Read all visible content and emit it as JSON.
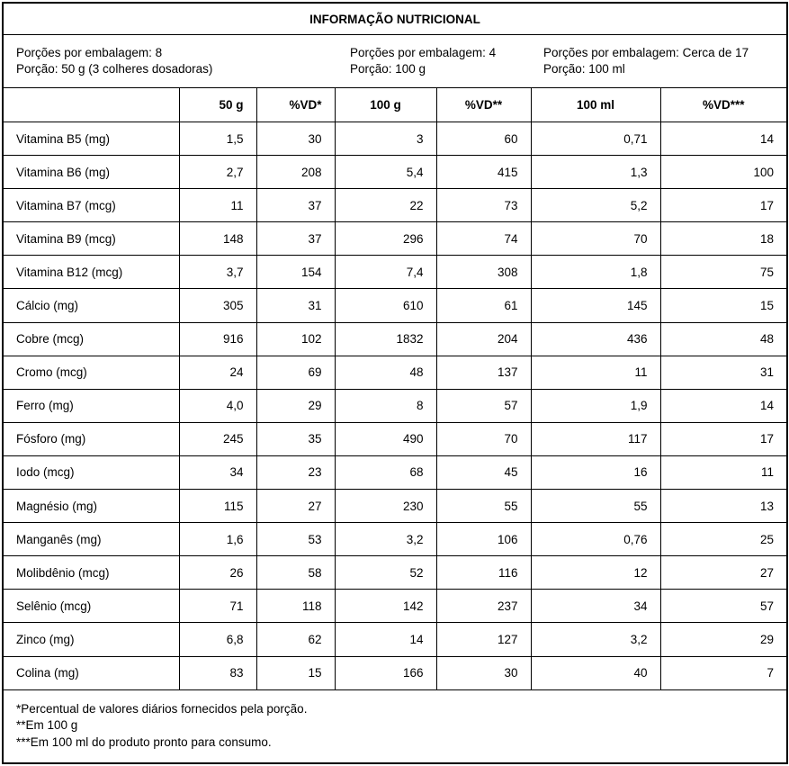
{
  "title": "INFORMAÇÃO NUTRICIONAL",
  "servings": [
    {
      "per_package": "Porções por embalagem: 8",
      "portion": "Porção: 50 g (3 colheres dosadoras)"
    },
    {
      "per_package": "Porções por embalagem: 4",
      "portion": "Porção: 100 g"
    },
    {
      "per_package": "Porções por embalagem: Cerca de 17",
      "portion": "Porção: 100 ml"
    }
  ],
  "columns": [
    "",
    "50 g",
    "%VD*",
    "100 g",
    "%VD**",
    "100 ml",
    "%VD***"
  ],
  "rows": [
    [
      "Vitamina B5 (mg)",
      "1,5",
      "30",
      "3",
      "60",
      "0,71",
      "14"
    ],
    [
      "Vitamina B6 (mg)",
      "2,7",
      "208",
      "5,4",
      "415",
      "1,3",
      "100"
    ],
    [
      "Vitamina B7 (mcg)",
      "11",
      "37",
      "22",
      "73",
      "5,2",
      "17"
    ],
    [
      "Vitamina B9 (mcg)",
      "148",
      "37",
      "296",
      "74",
      "70",
      "18"
    ],
    [
      "Vitamina B12 (mcg)",
      "3,7",
      "154",
      "7,4",
      "308",
      "1,8",
      "75"
    ],
    [
      "Cálcio (mg)",
      "305",
      "31",
      "610",
      "61",
      "145",
      "15"
    ],
    [
      "Cobre (mcg)",
      "916",
      "102",
      "1832",
      "204",
      "436",
      "48"
    ],
    [
      "Cromo (mcg)",
      "24",
      "69",
      "48",
      "137",
      "11",
      "31"
    ],
    [
      "Ferro (mg)",
      "4,0",
      "29",
      "8",
      "57",
      "1,9",
      "14"
    ],
    [
      "Fósforo (mg)",
      "245",
      "35",
      "490",
      "70",
      "117",
      "17"
    ],
    [
      "Iodo (mcg)",
      "34",
      "23",
      "68",
      "45",
      "16",
      "11"
    ],
    [
      "Magnésio (mg)",
      "115",
      "27",
      "230",
      "55",
      "55",
      "13"
    ],
    [
      "Manganês (mg)",
      "1,6",
      "53",
      "3,2",
      "106",
      "0,76",
      "25"
    ],
    [
      "Molibdênio (mcg)",
      "26",
      "58",
      "52",
      "116",
      "12",
      "27"
    ],
    [
      "Selênio (mcg)",
      "71",
      "118",
      "142",
      "237",
      "34",
      "57"
    ],
    [
      "Zinco (mg)",
      "6,8",
      "62",
      "14",
      "127",
      "3,2",
      "29"
    ],
    [
      "Colina (mg)",
      "83",
      "15",
      "166",
      "30",
      "40",
      "7"
    ]
  ],
  "footnotes": [
    "*Percentual de valores diários fornecidos pela porção.",
    "**Em 100 g",
    "***Em 100 ml do produto pronto para consumo."
  ]
}
